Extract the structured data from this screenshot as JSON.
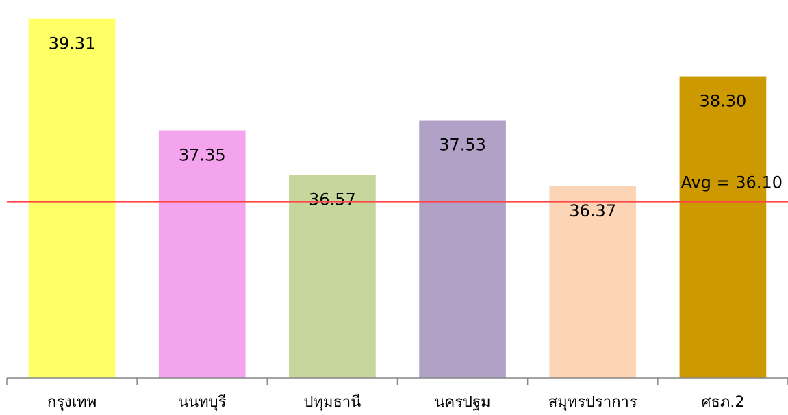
{
  "chart_data": {
    "type": "bar",
    "categories": [
      "กรุงเทพ",
      "นนทบุรี",
      "ปทุมธานี",
      "นครปฐม",
      "สมุทรปราการ",
      "ศธภ.2"
    ],
    "values": [
      39.31,
      37.35,
      36.57,
      37.53,
      36.37,
      38.3
    ],
    "value_labels": [
      "39.31",
      "37.35",
      "36.57",
      "37.53",
      "36.37",
      "38.30"
    ],
    "colors": [
      "#ffff66",
      "#f4a4ec",
      "#c5d79d",
      "#b1a1c7",
      "#fcd4b6",
      "#cc9900"
    ],
    "reference_line": {
      "value": 36.1,
      "label": "Avg = 36.10",
      "color": "#ff4444"
    },
    "ylim": [
      33,
      39.45
    ],
    "grid": false,
    "title": "",
    "xlabel": "",
    "ylabel": ""
  }
}
